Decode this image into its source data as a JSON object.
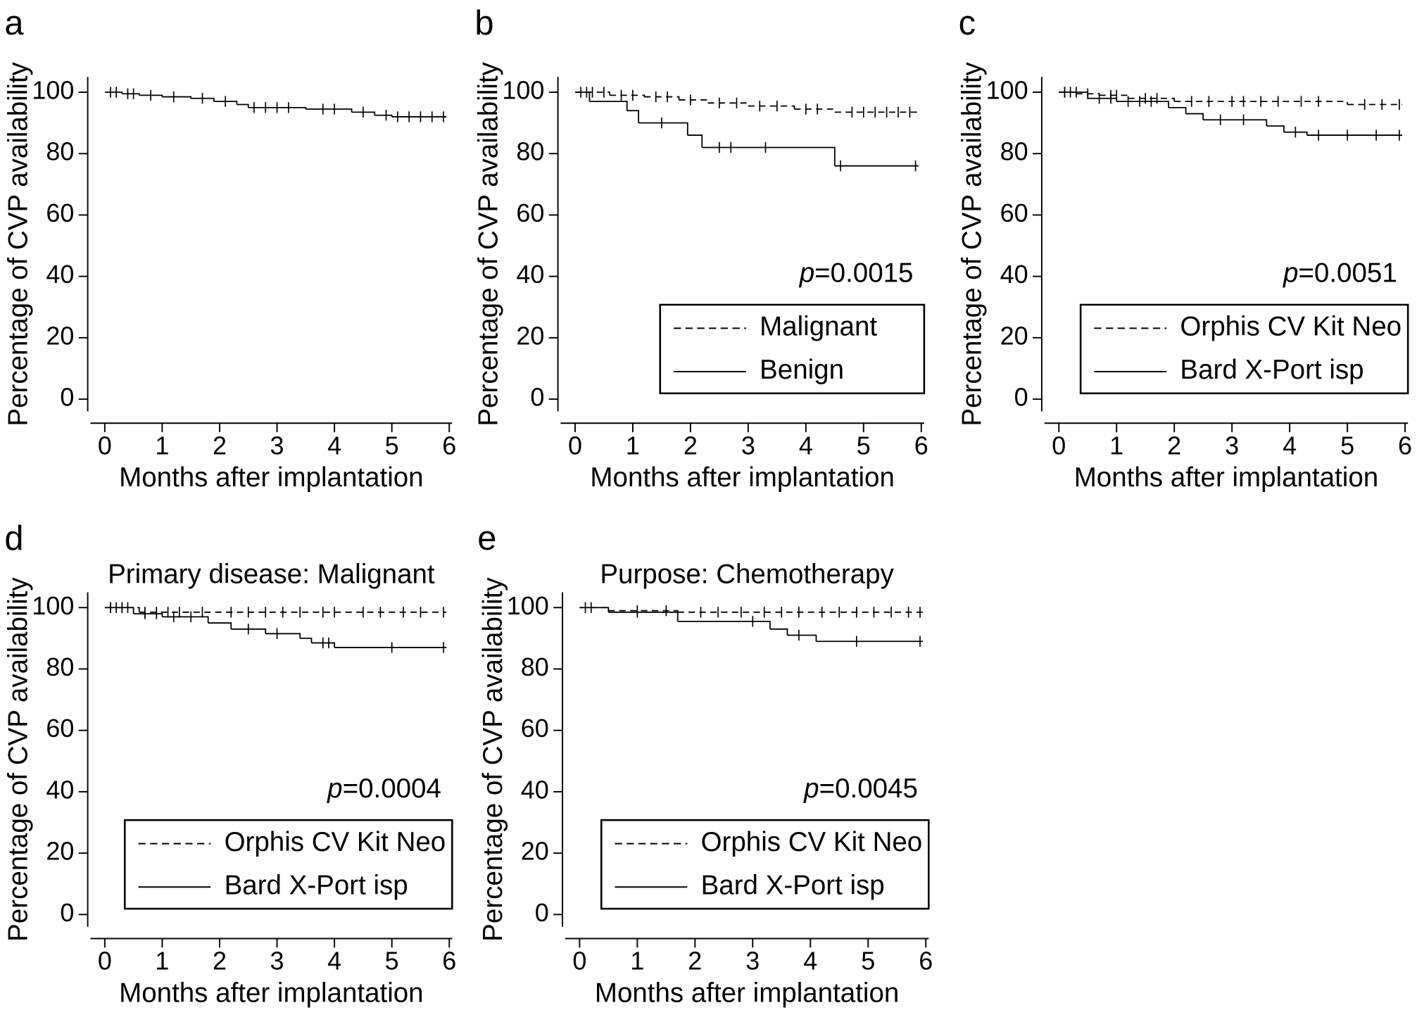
{
  "chart_data": [
    {
      "type": "km",
      "panel": "a",
      "x_label": "Months after implantation",
      "y_label": "Percentage of CVP availability",
      "xlim": [
        -0.25,
        6.05
      ],
      "ylim": [
        -4,
        105
      ],
      "xticks": [
        0,
        1,
        2,
        3,
        4,
        5,
        6
      ],
      "yticks": [
        0,
        20,
        40,
        60,
        80,
        100
      ],
      "series": [
        {
          "color": "#000000",
          "linestyle": "solid",
          "x": [
            0,
            0.3,
            0.6,
            1.0,
            1.5,
            1.9,
            2.3,
            2.5,
            3.5,
            4.3,
            4.7,
            5.0,
            5.95
          ],
          "values": [
            100,
            99.5,
            99,
            98.5,
            98,
            97,
            96,
            95,
            94.5,
            93.5,
            92.5,
            92,
            92
          ],
          "censor_x": [
            0.1,
            0.2,
            0.4,
            0.5,
            0.8,
            1.2,
            1.7,
            2.1,
            2.6,
            2.8,
            3.0,
            3.2,
            3.8,
            4.0,
            4.5,
            4.9,
            5.1,
            5.3,
            5.5,
            5.7,
            5.9
          ],
          "censor_values": [
            100,
            100,
            99.5,
            99.5,
            99,
            98.5,
            98,
            97,
            95,
            95,
            95,
            95,
            94.5,
            94.5,
            93.5,
            92.5,
            92,
            92,
            92,
            92,
            92
          ]
        }
      ]
    },
    {
      "type": "km",
      "panel": "b",
      "x_label": "Months after implantation",
      "y_label": "Percentage of CVP availability",
      "annotation": {
        "italic": "p",
        "text": "=0.0015"
      },
      "legend": "lower right",
      "xlim": [
        -0.25,
        6.05
      ],
      "ylim": [
        -4,
        105
      ],
      "xticks": [
        0,
        1,
        2,
        3,
        4,
        5,
        6
      ],
      "yticks": [
        0,
        20,
        40,
        60,
        80,
        100
      ],
      "series": [
        {
          "name": "Malignant",
          "color": "#000000",
          "linestyle": "dashed",
          "x": [
            0,
            0.6,
            1.2,
            1.8,
            2.3,
            3.0,
            3.8,
            4.5,
            5.95
          ],
          "values": [
            100,
            99,
            98.5,
            97.5,
            96.5,
            95.5,
            94.5,
            93.5,
            93.5
          ],
          "censor_x": [
            0.1,
            0.3,
            0.5,
            0.8,
            1.0,
            1.4,
            1.6,
            2.0,
            2.5,
            2.8,
            3.2,
            3.5,
            4.0,
            4.2,
            4.8,
            5.0,
            5.2,
            5.4,
            5.6,
            5.8
          ],
          "censor_values": [
            100,
            100,
            100,
            99,
            99,
            98.5,
            98.5,
            97.5,
            96.5,
            96.5,
            95.5,
            95.5,
            94.5,
            94.5,
            93.5,
            93.5,
            93.5,
            93.5,
            93.5,
            93.5
          ]
        },
        {
          "name": "Benign",
          "color": "#000000",
          "linestyle": "solid",
          "x": [
            0,
            0.25,
            0.9,
            1.1,
            1.95,
            2.2,
            4.5,
            5.95
          ],
          "values": [
            100,
            97,
            94,
            90,
            86,
            82,
            76,
            76
          ],
          "censor_x": [
            0.2,
            1.5,
            2.5,
            2.7,
            3.3,
            4.6,
            5.9
          ],
          "censor_values": [
            100,
            90,
            82,
            82,
            82,
            76,
            76
          ]
        }
      ]
    },
    {
      "type": "km",
      "panel": "c",
      "x_label": "Months after implantation",
      "y_label": "Percentage of CVP availability",
      "annotation": {
        "italic": "p",
        "text": "=0.0051"
      },
      "legend": "lower right",
      "xlim": [
        -0.25,
        6.05
      ],
      "ylim": [
        -4,
        105
      ],
      "xticks": [
        0,
        1,
        2,
        3,
        4,
        5,
        6
      ],
      "yticks": [
        0,
        20,
        40,
        60,
        80,
        100
      ],
      "series": [
        {
          "name": "Orphis CV Kit Neo",
          "color": "#000000",
          "linestyle": "dashed",
          "x": [
            0,
            0.3,
            0.7,
            1.2,
            2.0,
            5.0,
            5.95
          ],
          "values": [
            100,
            99.5,
            99,
            98,
            97,
            96,
            96
          ],
          "censor_x": [
            0.1,
            0.2,
            0.5,
            0.9,
            1.0,
            1.5,
            1.7,
            2.3,
            2.6,
            3.0,
            3.2,
            3.5,
            3.8,
            4.2,
            4.5,
            5.3,
            5.6,
            5.9
          ],
          "censor_values": [
            100,
            100,
            99.5,
            99,
            99,
            98,
            98,
            97,
            97,
            97,
            97,
            97,
            97,
            97,
            97,
            96,
            96,
            96
          ]
        },
        {
          "name": "Bard X-Port isp",
          "color": "#000000",
          "linestyle": "solid",
          "x": [
            0,
            0.5,
            1.0,
            1.9,
            2.2,
            2.5,
            3.6,
            3.9,
            4.3,
            5.95
          ],
          "values": [
            100,
            98,
            97,
            95,
            93,
            91,
            89,
            87,
            86,
            86
          ],
          "censor_x": [
            0.1,
            0.3,
            0.7,
            0.9,
            1.2,
            1.4,
            1.6,
            2.8,
            3.2,
            4.1,
            4.5,
            5.0,
            5.5,
            5.9
          ],
          "censor_values": [
            100,
            100,
            98,
            98,
            97,
            97,
            97,
            91,
            91,
            87,
            86,
            86,
            86,
            86
          ]
        }
      ]
    },
    {
      "type": "km",
      "panel": "d",
      "title": "Primary disease: Malignant",
      "x_label": "Months after implantation",
      "y_label": "Percentage of CVP availability",
      "annotation": {
        "italic": "p",
        "text": "=0.0004"
      },
      "legend": "lower right",
      "xlim": [
        -0.25,
        6.05
      ],
      "ylim": [
        -4,
        105
      ],
      "xticks": [
        0,
        1,
        2,
        3,
        4,
        5,
        6
      ],
      "yticks": [
        0,
        20,
        40,
        60,
        80,
        100
      ],
      "series": [
        {
          "name": "Orphis CV Kit Neo",
          "color": "#000000",
          "linestyle": "dashed",
          "x": [
            0,
            0.6,
            5.95
          ],
          "values": [
            100,
            98.5,
            98.5
          ],
          "censor_x": [
            0.1,
            0.2,
            0.3,
            0.4,
            0.7,
            0.9,
            1.1,
            1.3,
            1.7,
            2.2,
            2.5,
            2.8,
            3.1,
            3.4,
            3.8,
            4.0,
            4.5,
            4.8,
            5.2,
            5.5,
            5.9
          ],
          "censor_values": [
            100,
            100,
            100,
            100,
            98.5,
            98.5,
            98.5,
            98.5,
            98.5,
            98.5,
            98.5,
            98.5,
            98.5,
            98.5,
            98.5,
            98.5,
            98.5,
            98.5,
            98.5,
            98.5,
            98.5
          ]
        },
        {
          "name": "Bard X-Port isp",
          "color": "#000000",
          "linestyle": "solid",
          "x": [
            0,
            0.5,
            1.0,
            1.8,
            2.2,
            2.8,
            3.4,
            3.6,
            4.0,
            5.95
          ],
          "values": [
            100,
            98,
            97,
            95,
            93,
            91.5,
            90,
            88.5,
            87,
            87
          ],
          "censor_x": [
            0.1,
            0.3,
            0.7,
            0.9,
            1.2,
            1.5,
            2.5,
            3.0,
            3.8,
            3.9,
            5.0,
            5.9
          ],
          "censor_values": [
            100,
            100,
            98,
            98,
            97,
            97,
            93,
            91.5,
            88.5,
            88.5,
            87,
            87
          ]
        }
      ]
    },
    {
      "type": "km",
      "panel": "e",
      "title": "Purpose: Chemotherapy",
      "x_label": "Months after implantation",
      "y_label": "Percentage of CVP availability",
      "annotation": {
        "italic": "p",
        "text": "=0.0045"
      },
      "legend": "lower right",
      "xlim": [
        -0.25,
        6.05
      ],
      "ylim": [
        -4,
        105
      ],
      "xticks": [
        0,
        1,
        2,
        3,
        4,
        5,
        6
      ],
      "yticks": [
        0,
        20,
        40,
        60,
        80,
        100
      ],
      "series": [
        {
          "name": "Orphis CV Kit Neo",
          "color": "#000000",
          "linestyle": "dashed",
          "x": [
            0,
            0.5,
            1.7,
            5.95
          ],
          "values": [
            100,
            99,
            98.5,
            98.5
          ],
          "censor_x": [
            0.2,
            1.0,
            1.5,
            2.1,
            2.4,
            2.8,
            3.2,
            3.5,
            3.8,
            4.2,
            4.5,
            4.8,
            5.1,
            5.4,
            5.7,
            5.9
          ],
          "censor_values": [
            100,
            99,
            99,
            98.5,
            98.5,
            98.5,
            98.5,
            98.5,
            98.5,
            98.5,
            98.5,
            98.5,
            98.5,
            98.5,
            98.5,
            98.5
          ]
        },
        {
          "name": "Bard X-Port isp",
          "color": "#000000",
          "linestyle": "solid",
          "x": [
            0,
            0.5,
            1.7,
            3.3,
            3.6,
            4.1,
            5.95
          ],
          "values": [
            100,
            98.5,
            95.5,
            93,
            91,
            89,
            89
          ],
          "censor_x": [
            0.1,
            1.0,
            3.0,
            3.8,
            4.8,
            5.9
          ],
          "censor_values": [
            100,
            98.5,
            95.5,
            91,
            89,
            89
          ]
        }
      ]
    }
  ]
}
